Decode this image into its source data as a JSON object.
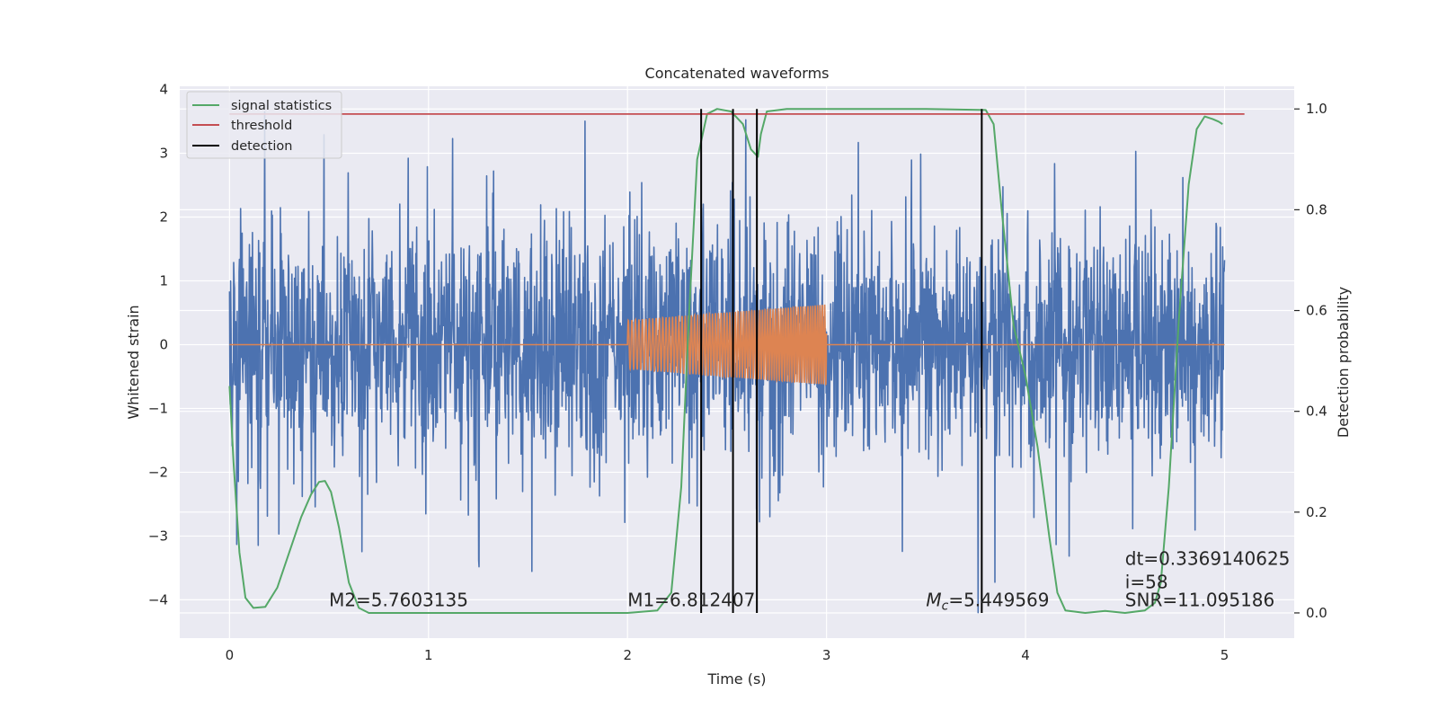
{
  "chart_data": {
    "type": "line",
    "title": "Concatenated waveforms",
    "xlabel": "Time (s)",
    "ylabel": "Whitened strain",
    "ylabel_right": "Detection probability",
    "xlim": [
      -0.25,
      5.35
    ],
    "ylim": [
      -4.6,
      4.05
    ],
    "ylim_right": [
      -0.05,
      1.045
    ],
    "x_ticks": [
      "0",
      "1",
      "2",
      "3",
      "4",
      "5"
    ],
    "y_ticks": [
      "4",
      "3",
      "2",
      "1",
      "0",
      "−1",
      "−2",
      "−3",
      "−4"
    ],
    "y_ticks_right": [
      "1.0",
      "0.8",
      "0.6",
      "0.4",
      "0.2",
      "0.0"
    ],
    "grid": true,
    "legend_position": "top-left",
    "colors": {
      "background": "#eaeaf2",
      "noise": "#4c72b0",
      "waveform": "#dd8452",
      "signal_statistics": "#55a868",
      "threshold": "#c44e52",
      "detection": "#000000"
    },
    "series": [
      {
        "name": "",
        "axis": "left",
        "color": "#4c72b0",
        "description": "whitened strain noise",
        "x_range": [
          0,
          5
        ],
        "amplitude_envelope": [
          -4.2,
          3.65
        ]
      },
      {
        "name": "",
        "axis": "left",
        "color": "#dd8452",
        "description": "injected chirp",
        "x_range": [
          0,
          5
        ],
        "chirp_start": 2.0,
        "chirp_end": 3.0,
        "amplitude_start": 0.38,
        "amplitude_end": 0.63
      },
      {
        "name": "signal statistics",
        "axis": "right",
        "color": "#55a868",
        "x": [
          0,
          0.02,
          0.05,
          0.08,
          0.12,
          0.18,
          0.24,
          0.3,
          0.36,
          0.41,
          0.45,
          0.48,
          0.51,
          0.55,
          0.6,
          0.65,
          0.7,
          1.0,
          2.0,
          2.15,
          2.22,
          2.27,
          2.31,
          2.35,
          2.4,
          2.45,
          2.52,
          2.58,
          2.62,
          2.655,
          2.67,
          2.7,
          2.8,
          3.5,
          3.8,
          3.84,
          3.88,
          3.94,
          4.0,
          4.06,
          4.12,
          4.16,
          4.2,
          4.3,
          4.4,
          4.5,
          4.6,
          4.65,
          4.68,
          4.72,
          4.77,
          4.82,
          4.86,
          4.9,
          4.94,
          4.97,
          4.99
        ],
        "y": [
          0.45,
          0.3,
          0.12,
          0.03,
          0.01,
          0.012,
          0.05,
          0.12,
          0.19,
          0.235,
          0.26,
          0.262,
          0.24,
          0.17,
          0.06,
          0.01,
          0.0,
          0.0,
          0.0,
          0.005,
          0.04,
          0.25,
          0.6,
          0.9,
          0.99,
          1.0,
          0.995,
          0.97,
          0.92,
          0.905,
          0.95,
          0.995,
          1.0,
          1.0,
          0.998,
          0.97,
          0.8,
          0.57,
          0.47,
          0.33,
          0.15,
          0.04,
          0.005,
          0.0,
          0.004,
          0.0,
          0.005,
          0.02,
          0.06,
          0.25,
          0.58,
          0.85,
          0.96,
          0.985,
          0.98,
          0.975,
          0.97
        ]
      },
      {
        "name": "threshold",
        "axis": "right",
        "color": "#c44e52",
        "x": [
          0,
          5.1
        ],
        "y": [
          0.99,
          0.99
        ]
      }
    ],
    "detections": {
      "name": "detection",
      "color": "#000000",
      "x": [
        2.37,
        2.53,
        2.65,
        3.78
      ],
      "y_range_right": [
        0.0,
        1.0
      ]
    },
    "legend": [
      {
        "label": "signal statistics",
        "color": "#55a868"
      },
      {
        "label": "threshold",
        "color": "#c44e52"
      },
      {
        "label": "detection",
        "color": "#000000"
      }
    ],
    "annotations": [
      {
        "id": "m2",
        "text": "M2=5.7603135",
        "x": 0.5,
        "y": -4.1
      },
      {
        "id": "m1",
        "text": "M1=6.812407",
        "x": 2.0,
        "y": -4.1
      },
      {
        "id": "mc",
        "text": "=5.449569",
        "x": 3.5,
        "y": -4.1,
        "prefix": "M",
        "subscript": "c"
      },
      {
        "id": "dt",
        "text": "dt=0.3369140625",
        "x": 4.5,
        "y": -3.45
      },
      {
        "id": "i",
        "text": " i=58",
        "x": 4.5,
        "y": -3.82
      },
      {
        "id": "snr",
        "text": "SNR=11.095186",
        "x": 4.5,
        "y": -4.1
      }
    ]
  }
}
